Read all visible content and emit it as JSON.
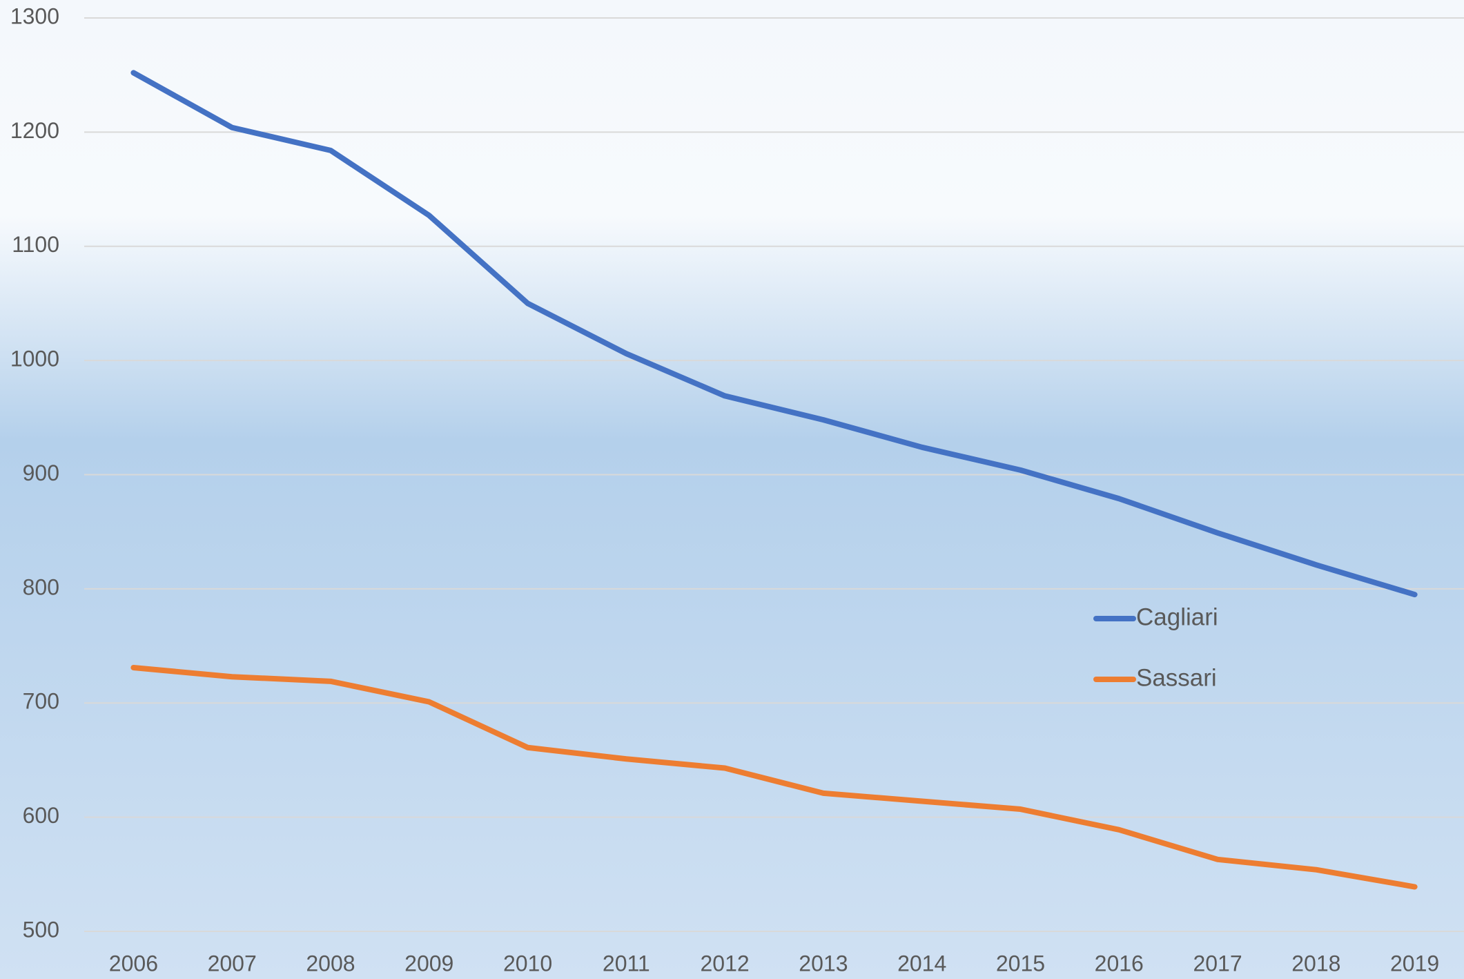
{
  "chart_data": {
    "type": "line",
    "categories": [
      "2006",
      "2007",
      "2008",
      "2009",
      "2010",
      "2011",
      "2012",
      "2013",
      "2014",
      "2015",
      "2016",
      "2017",
      "2018",
      "2019"
    ],
    "series": [
      {
        "name": "Cagliari",
        "color": "#4472c4",
        "values": [
          1252,
          1204,
          1184,
          1127,
          1050,
          1006,
          969,
          948,
          924,
          904,
          879,
          849,
          821,
          795
        ]
      },
      {
        "name": "Sassari",
        "color": "#ed7d31",
        "values": [
          731,
          723,
          719,
          701,
          661,
          651,
          643,
          621,
          614,
          607,
          589,
          563,
          554,
          539
        ]
      }
    ],
    "ylim": [
      500,
      1300
    ],
    "yticks": [
      500,
      600,
      700,
      800,
      900,
      1000,
      1100,
      1200,
      1300
    ],
    "grid": true,
    "legend": "right"
  }
}
